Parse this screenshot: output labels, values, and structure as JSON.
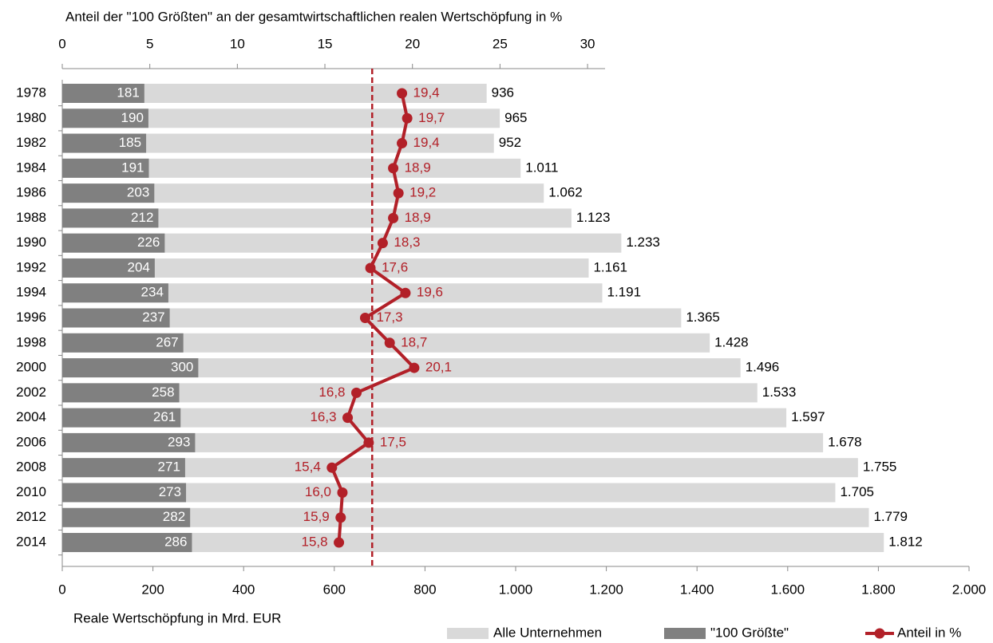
{
  "chart_data": {
    "type": "bar",
    "orientation": "horizontal",
    "x2_label": "Anteil der \"100 Größten\" an der gesamtwirtschaftlichen realen Wertschöpfung in %",
    "x_label": "Reale Wertschöpfung in Mrd. EUR",
    "categories": [
      "1978",
      "1980",
      "1982",
      "1984",
      "1986",
      "1988",
      "1990",
      "1992",
      "1994",
      "1996",
      "1998",
      "2000",
      "2002",
      "2004",
      "2006",
      "2008",
      "2010",
      "2012",
      "2014"
    ],
    "series": [
      {
        "name": "Alle Unternehmen",
        "color": "#d9d9d9",
        "type": "bar",
        "values": [
          936,
          965,
          952,
          1011,
          1062,
          1123,
          1233,
          1161,
          1191,
          1365,
          1428,
          1496,
          1533,
          1597,
          1678,
          1755,
          1705,
          1779,
          1812
        ],
        "value_labels": [
          "936",
          "965",
          "952",
          "1.011",
          "1.062",
          "1.123",
          "1.233",
          "1.161",
          "1.191",
          "1.365",
          "1.428",
          "1.496",
          "1.533",
          "1.597",
          "1.678",
          "1.755",
          "1.705",
          "1.779",
          "1.812"
        ]
      },
      {
        "name": "\"100 Größte\"",
        "color": "#808080",
        "type": "bar",
        "values": [
          181,
          190,
          185,
          191,
          203,
          212,
          226,
          204,
          234,
          237,
          267,
          300,
          258,
          261,
          293,
          271,
          273,
          282,
          286
        ]
      },
      {
        "name": "Anteil in %",
        "color": "#b22028",
        "type": "line",
        "axis": "x2",
        "values": [
          19.4,
          19.7,
          19.4,
          18.9,
          19.2,
          18.9,
          18.3,
          17.6,
          19.6,
          17.3,
          18.7,
          20.1,
          16.8,
          16.3,
          17.5,
          15.4,
          16.0,
          15.9,
          15.8
        ],
        "value_labels": [
          "19,4",
          "19,7",
          "19,4",
          "18,9",
          "19,2",
          "18,9",
          "18,3",
          "17,6",
          "19,6",
          "17,3",
          "18,7",
          "20,1",
          "16,8",
          "16,3",
          "17,5",
          "15,4",
          "16,0",
          "15,9",
          "15,8"
        ]
      }
    ],
    "xlim": [
      0,
      2000
    ],
    "xticks": [
      0,
      200,
      400,
      600,
      800,
      {
        "value": 1000,
        "label": "1.000"
      },
      {
        "value": 1200,
        "label": "1.200"
      },
      {
        "value": 1400,
        "label": "1.400"
      },
      {
        "value": 1600,
        "label": "1.600"
      },
      {
        "value": 1800,
        "label": "1.800"
      },
      {
        "value": 2000,
        "label": "2.000"
      }
    ],
    "x2lim": [
      0,
      31
    ],
    "x2ticks": [
      0,
      5,
      10,
      15,
      20,
      25,
      30
    ],
    "reference_line": {
      "value": 17.7,
      "axis": "x2",
      "color": "#b22028"
    }
  }
}
